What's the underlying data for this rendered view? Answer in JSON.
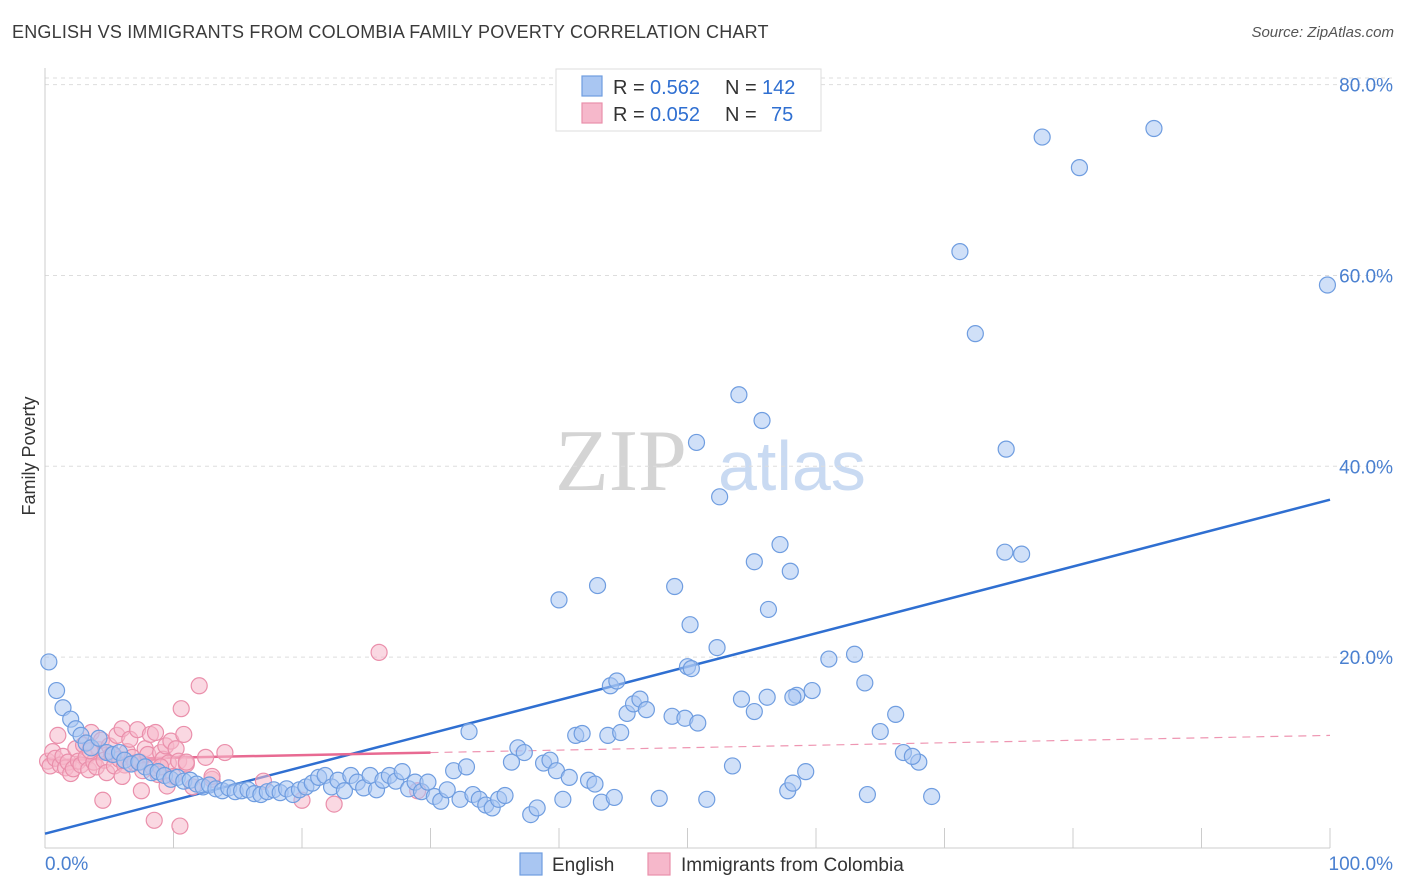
{
  "header": {
    "title": "ENGLISH VS IMMIGRANTS FROM COLOMBIA FAMILY POVERTY CORRELATION CHART",
    "source": "Source: ZipAtlas.com"
  },
  "watermark": {
    "zip": "ZIP",
    "atlas": "atlas"
  },
  "legend_top": [
    {
      "r_label": "R =",
      "r_value": "0.562",
      "n_label": "N =",
      "n_value": "142"
    },
    {
      "r_label": "R =",
      "r_value": "0.052",
      "n_label": "N =",
      "n_value": "75"
    }
  ],
  "colors": {
    "english_fill": "#a9c6f2",
    "english_stroke": "#6f9de0",
    "english_line": "#2f6fd1",
    "colombia_fill": "#f6b8cb",
    "colombia_stroke": "#ea8fab",
    "colombia_line": "#e86a92",
    "grid": "#dddddd",
    "tick_text": "#4a80d0"
  },
  "chart_data": {
    "type": "scatter",
    "title": "ENGLISH VS IMMIGRANTS FROM COLOMBIA FAMILY POVERTY CORRELATION CHART",
    "xlabel": "",
    "ylabel": "Family Poverty",
    "xlim": [
      0,
      100
    ],
    "ylim": [
      0,
      82
    ],
    "x_tick_labels": [
      "0.0%",
      "100.0%"
    ],
    "y_ticks": [
      20,
      40,
      60,
      80
    ],
    "y_tick_labels": [
      "20.0%",
      "40.0%",
      "60.0%",
      "80.0%"
    ],
    "legend_position": "bottom-center",
    "series": [
      {
        "name": "English",
        "r": 0.562,
        "n": 142,
        "trend": {
          "x": [
            0,
            100
          ],
          "y": [
            1.5,
            36.5
          ],
          "style": "solid"
        },
        "points": [
          [
            0.3,
            19.5
          ],
          [
            0.9,
            16.5
          ],
          [
            1.4,
            14.7
          ],
          [
            2.0,
            13.5
          ],
          [
            2.4,
            12.5
          ],
          [
            2.8,
            11.8
          ],
          [
            3.2,
            11.0
          ],
          [
            3.6,
            10.5
          ],
          [
            4.2,
            11.5
          ],
          [
            4.8,
            10.0
          ],
          [
            5.3,
            9.8
          ],
          [
            5.8,
            10.0
          ],
          [
            6.2,
            9.2
          ],
          [
            6.7,
            8.8
          ],
          [
            7.3,
            9.0
          ],
          [
            7.8,
            8.5
          ],
          [
            8.3,
            7.9
          ],
          [
            8.8,
            8.0
          ],
          [
            9.3,
            7.6
          ],
          [
            9.8,
            7.2
          ],
          [
            10.3,
            7.4
          ],
          [
            10.8,
            7.0
          ],
          [
            11.3,
            7.1
          ],
          [
            11.8,
            6.7
          ],
          [
            12.3,
            6.4
          ],
          [
            12.8,
            6.6
          ],
          [
            13.3,
            6.2
          ],
          [
            13.8,
            6.0
          ],
          [
            14.3,
            6.3
          ],
          [
            14.8,
            5.9
          ],
          [
            15.3,
            6.0
          ],
          [
            15.8,
            6.1
          ],
          [
            16.3,
            5.7
          ],
          [
            16.8,
            5.6
          ],
          [
            17.3,
            5.9
          ],
          [
            17.8,
            6.1
          ],
          [
            18.3,
            5.8
          ],
          [
            18.8,
            6.2
          ],
          [
            19.3,
            5.6
          ],
          [
            19.8,
            6.1
          ],
          [
            20.3,
            6.4
          ],
          [
            20.8,
            6.8
          ],
          [
            21.3,
            7.4
          ],
          [
            21.8,
            7.6
          ],
          [
            22.3,
            6.4
          ],
          [
            22.8,
            7.1
          ],
          [
            23.3,
            6.0
          ],
          [
            23.8,
            7.6
          ],
          [
            24.3,
            6.9
          ],
          [
            24.8,
            6.3
          ],
          [
            25.3,
            7.6
          ],
          [
            25.8,
            6.1
          ],
          [
            26.3,
            7.1
          ],
          [
            26.8,
            7.6
          ],
          [
            27.3,
            7.0
          ],
          [
            27.8,
            8.0
          ],
          [
            28.3,
            6.2
          ],
          [
            28.8,
            6.9
          ],
          [
            29.3,
            5.9
          ],
          [
            29.8,
            6.9
          ],
          [
            30.3,
            5.4
          ],
          [
            30.8,
            4.9
          ],
          [
            31.3,
            6.1
          ],
          [
            31.8,
            8.1
          ],
          [
            32.3,
            5.1
          ],
          [
            32.8,
            8.5
          ],
          [
            33.3,
            5.6
          ],
          [
            33.8,
            5.1
          ],
          [
            34.3,
            4.5
          ],
          [
            34.8,
            4.2
          ],
          [
            35.3,
            5.1
          ],
          [
            35.8,
            5.5
          ],
          [
            36.3,
            9.0
          ],
          [
            36.8,
            10.5
          ],
          [
            37.3,
            10.0
          ],
          [
            37.8,
            3.5
          ],
          [
            38.3,
            4.2
          ],
          [
            38.8,
            8.9
          ],
          [
            39.3,
            9.2
          ],
          [
            39.8,
            8.1
          ],
          [
            40.3,
            5.1
          ],
          [
            40.8,
            7.4
          ],
          [
            41.3,
            11.8
          ],
          [
            41.8,
            12.0
          ],
          [
            42.3,
            7.1
          ],
          [
            42.8,
            6.7
          ],
          [
            43.3,
            4.8
          ],
          [
            43.8,
            11.8
          ],
          [
            44.3,
            5.3
          ],
          [
            44.8,
            12.1
          ],
          [
            45.3,
            14.1
          ],
          [
            45.8,
            15.1
          ],
          [
            46.3,
            15.6
          ],
          [
            46.8,
            14.5
          ],
          [
            47.8,
            5.2
          ],
          [
            48.8,
            13.8
          ],
          [
            49.8,
            13.6
          ],
          [
            50.8,
            13.1
          ],
          [
            51.5,
            5.1
          ],
          [
            53.5,
            8.6
          ],
          [
            54.2,
            15.6
          ],
          [
            55.2,
            14.3
          ],
          [
            56.2,
            15.8
          ],
          [
            57.8,
            6.0
          ],
          [
            58.2,
            6.8
          ],
          [
            59.2,
            8.0
          ],
          [
            33.0,
            12.2
          ],
          [
            40.0,
            26.0
          ],
          [
            44.0,
            17.0
          ],
          [
            44.5,
            17.5
          ],
          [
            43.0,
            27.5
          ],
          [
            50.0,
            19.0
          ],
          [
            50.3,
            18.8
          ],
          [
            52.3,
            21.0
          ],
          [
            49.0,
            27.4
          ],
          [
            50.7,
            42.5
          ],
          [
            55.2,
            30.0
          ],
          [
            57.2,
            31.8
          ],
          [
            56.3,
            25.0
          ],
          [
            58.0,
            29.0
          ],
          [
            50.2,
            23.4
          ],
          [
            58.5,
            16.0
          ],
          [
            59.7,
            16.5
          ],
          [
            61.0,
            19.8
          ],
          [
            63.0,
            20.3
          ],
          [
            63.8,
            17.3
          ],
          [
            66.2,
            14.0
          ],
          [
            65.0,
            12.2
          ],
          [
            66.8,
            10.0
          ],
          [
            68.0,
            9.0
          ],
          [
            52.5,
            36.8
          ],
          [
            54.0,
            47.5
          ],
          [
            55.8,
            44.8
          ],
          [
            58.2,
            15.8
          ],
          [
            64.0,
            5.6
          ],
          [
            67.5,
            9.6
          ],
          [
            69.0,
            5.4
          ],
          [
            71.2,
            62.5
          ],
          [
            74.7,
            31.0
          ],
          [
            76.0,
            30.8
          ],
          [
            77.6,
            74.5
          ],
          [
            74.8,
            41.8
          ],
          [
            80.5,
            71.3
          ],
          [
            86.3,
            75.4
          ],
          [
            99.8,
            59.0
          ],
          [
            72.4,
            53.9
          ]
        ]
      },
      {
        "name": "Immigrants from Colombia",
        "r": 0.052,
        "n": 75,
        "trend": {
          "x": [
            0,
            30
          ],
          "y": [
            9.2,
            10.0
          ],
          "style": "solid",
          "extend_to": [
            100,
            11.8
          ],
          "extend_style": "dashed"
        },
        "points": [
          [
            0.2,
            9.1
          ],
          [
            0.4,
            8.6
          ],
          [
            0.6,
            10.1
          ],
          [
            0.8,
            9.4
          ],
          [
            1.0,
            11.8
          ],
          [
            1.2,
            8.7
          ],
          [
            1.4,
            9.6
          ],
          [
            1.6,
            8.4
          ],
          [
            1.8,
            9.0
          ],
          [
            2.0,
            7.8
          ],
          [
            2.2,
            8.3
          ],
          [
            2.4,
            10.4
          ],
          [
            2.6,
            9.1
          ],
          [
            2.8,
            8.7
          ],
          [
            3.0,
            10.8
          ],
          [
            3.2,
            9.5
          ],
          [
            3.4,
            8.2
          ],
          [
            3.6,
            12.1
          ],
          [
            3.8,
            9.0
          ],
          [
            4.0,
            8.5
          ],
          [
            4.2,
            10.3
          ],
          [
            4.4,
            11.3
          ],
          [
            4.6,
            9.2
          ],
          [
            4.8,
            7.9
          ],
          [
            5.0,
            10.7
          ],
          [
            5.2,
            9.8
          ],
          [
            5.4,
            8.6
          ],
          [
            5.6,
            11.8
          ],
          [
            5.8,
            9.3
          ],
          [
            6.0,
            12.5
          ],
          [
            6.2,
            8.7
          ],
          [
            6.4,
            10.1
          ],
          [
            6.6,
            11.4
          ],
          [
            6.8,
            9.5
          ],
          [
            7.0,
            8.9
          ],
          [
            7.2,
            12.4
          ],
          [
            7.4,
            9.0
          ],
          [
            7.6,
            8.1
          ],
          [
            7.8,
            10.4
          ],
          [
            8.0,
            9.8
          ],
          [
            8.2,
            11.9
          ],
          [
            8.4,
            8.4
          ],
          [
            8.6,
            12.1
          ],
          [
            8.8,
            7.7
          ],
          [
            9.0,
            10.0
          ],
          [
            9.2,
            9.3
          ],
          [
            9.4,
            10.7
          ],
          [
            9.6,
            8.9
          ],
          [
            9.8,
            11.2
          ],
          [
            10.0,
            7.5
          ],
          [
            10.2,
            10.4
          ],
          [
            10.4,
            9.1
          ],
          [
            10.6,
            14.6
          ],
          [
            10.8,
            11.9
          ],
          [
            11.0,
            8.8
          ],
          [
            11.5,
            6.4
          ],
          [
            12.0,
            17.0
          ],
          [
            12.5,
            9.5
          ],
          [
            13.0,
            7.2
          ],
          [
            14.0,
            10.0
          ],
          [
            4.5,
            5.0
          ],
          [
            6.0,
            7.5
          ],
          [
            7.5,
            6.0
          ],
          [
            8.5,
            2.9
          ],
          [
            9.0,
            8.5
          ],
          [
            9.5,
            6.5
          ],
          [
            10.5,
            2.3
          ],
          [
            11.0,
            9.0
          ],
          [
            13.0,
            7.5
          ],
          [
            17.0,
            7.0
          ],
          [
            20.0,
            5.0
          ],
          [
            22.5,
            4.6
          ],
          [
            26.0,
            20.5
          ],
          [
            29.0,
            6.0
          ],
          [
            3.5,
            10.2
          ]
        ]
      }
    ]
  },
  "legend_bottom": [
    {
      "label": "English"
    },
    {
      "label": "Immigrants from Colombia"
    }
  ]
}
